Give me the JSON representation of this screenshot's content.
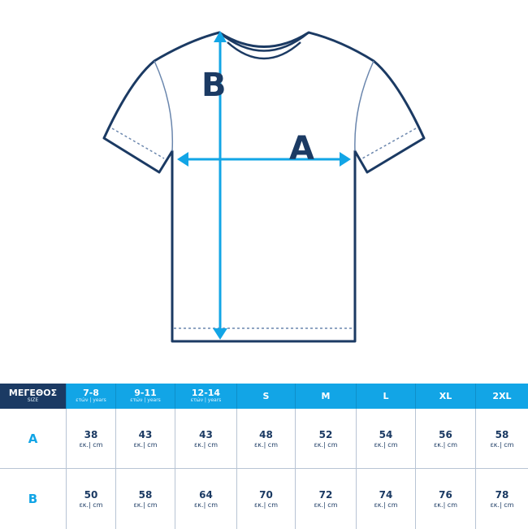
{
  "diagram": {
    "label_a": "A",
    "label_b": "B",
    "colors": {
      "outline": "#1b3a63",
      "arrow": "#12a5e6",
      "header": "#12a5e6",
      "header_first": "#1b3a63"
    }
  },
  "table": {
    "corner": {
      "title": "ΜΕΓΕΘΟΣ",
      "subtitle": "SIZE"
    },
    "columns": [
      {
        "size": "7-8",
        "sub": "ετών | years"
      },
      {
        "size": "9-11",
        "sub": "ετών | years"
      },
      {
        "size": "12-14",
        "sub": "ετών | years"
      },
      {
        "size": "S",
        "sub": ""
      },
      {
        "size": "M",
        "sub": ""
      },
      {
        "size": "L",
        "sub": ""
      },
      {
        "size": "XL",
        "sub": ""
      },
      {
        "size": "2XL",
        "sub": ""
      }
    ],
    "unit": "εκ.| cm",
    "rows": [
      {
        "label": "A",
        "values": [
          "38",
          "43",
          "43",
          "48",
          "52",
          "54",
          "56",
          "58"
        ]
      },
      {
        "label": "B",
        "values": [
          "50",
          "58",
          "64",
          "70",
          "72",
          "74",
          "76",
          "78"
        ]
      }
    ]
  }
}
